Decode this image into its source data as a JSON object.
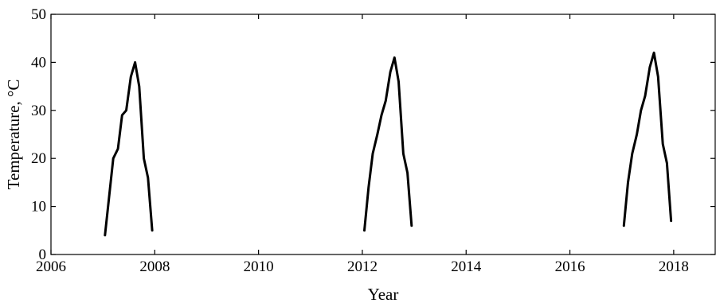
{
  "chart_data": {
    "type": "line",
    "title": "",
    "xlabel": "Year",
    "ylabel": "Temperature, °C",
    "xlim": [
      2006,
      2018.8
    ],
    "ylim": [
      0,
      50
    ],
    "x_ticks": [
      2006,
      2008,
      2010,
      2012,
      2014,
      2016,
      2018
    ],
    "x_tick_labels": [
      "2006",
      "2008",
      "2010",
      "2012",
      "2014",
      "2016",
      "2018"
    ],
    "y_ticks": [
      0,
      10,
      20,
      30,
      40,
      50
    ],
    "y_tick_labels": [
      "0",
      "10",
      "20",
      "30",
      "40",
      "50"
    ],
    "grid": false,
    "legend": "none",
    "series": [
      {
        "color": "#000000",
        "segments": [
          {
            "x": [
              2007.04,
              2007.12,
              2007.2,
              2007.29,
              2007.37,
              2007.45,
              2007.54,
              2007.62,
              2007.7,
              2007.79,
              2007.87,
              2007.95
            ],
            "y": [
              4,
              12,
              20,
              22,
              29,
              30,
              37,
              40,
              35,
              20,
              16,
              5
            ]
          },
          {
            "x": [
              2012.04,
              2012.12,
              2012.2,
              2012.29,
              2012.37,
              2012.45,
              2012.54,
              2012.62,
              2012.7,
              2012.79,
              2012.87,
              2012.95
            ],
            "y": [
              5,
              14,
              21,
              25,
              29,
              32,
              38,
              41,
              36,
              21,
              17,
              6
            ]
          },
          {
            "x": [
              2017.04,
              2017.12,
              2017.2,
              2017.29,
              2017.37,
              2017.45,
              2017.54,
              2017.62,
              2017.7,
              2017.79,
              2017.87,
              2017.95
            ],
            "y": [
              6,
              15,
              21,
              25,
              30,
              33,
              39,
              42,
              37,
              23,
              19,
              7
            ]
          }
        ]
      }
    ]
  }
}
